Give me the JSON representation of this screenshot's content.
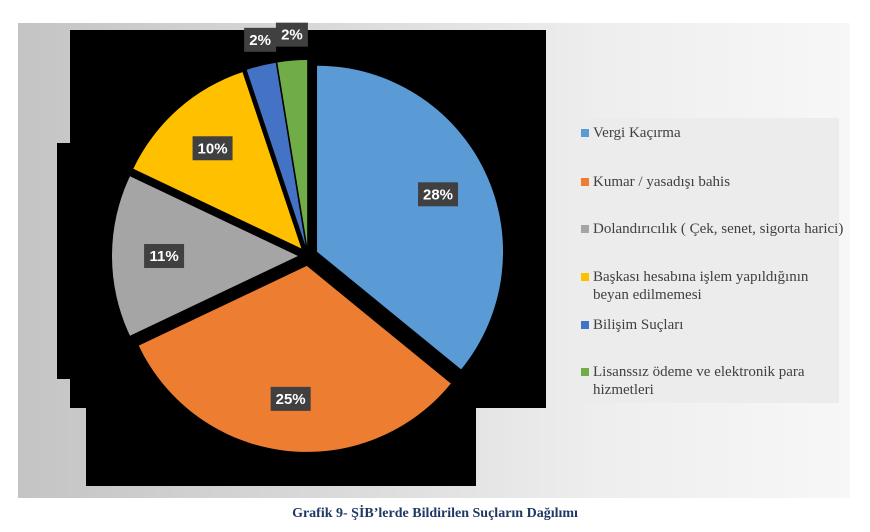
{
  "caption": "Grafik 9- ŞİB’lerde Bildirilen Suçların Dağılımı",
  "chart_data": {
    "type": "pie",
    "title": "",
    "legend_position": "right",
    "slices": [
      {
        "label": "Vergi Kaçırma",
        "value": 28,
        "display": "28%",
        "color": "#5b9bd5"
      },
      {
        "label": "Kumar / yasadışı bahis",
        "value": 25,
        "display": "25%",
        "color": "#ed7d31"
      },
      {
        "label": "Dolandırıcılık ( Çek, senet, sigorta harici)",
        "value": 11,
        "display": "11%",
        "color": "#a5a5a5"
      },
      {
        "label": "Başkası hesabına işlem yapıldığının beyan edilmemesi",
        "value": 10,
        "display": "10%",
        "color": "#ffc000"
      },
      {
        "label": "Bilişim Suçları",
        "value": 2,
        "display": "2%",
        "color": "#4472c4"
      },
      {
        "label": "Lisanssız ödeme ve elektronik para hizmetleri",
        "value": 2,
        "display": "2%",
        "color": "#70ad47"
      }
    ]
  }
}
